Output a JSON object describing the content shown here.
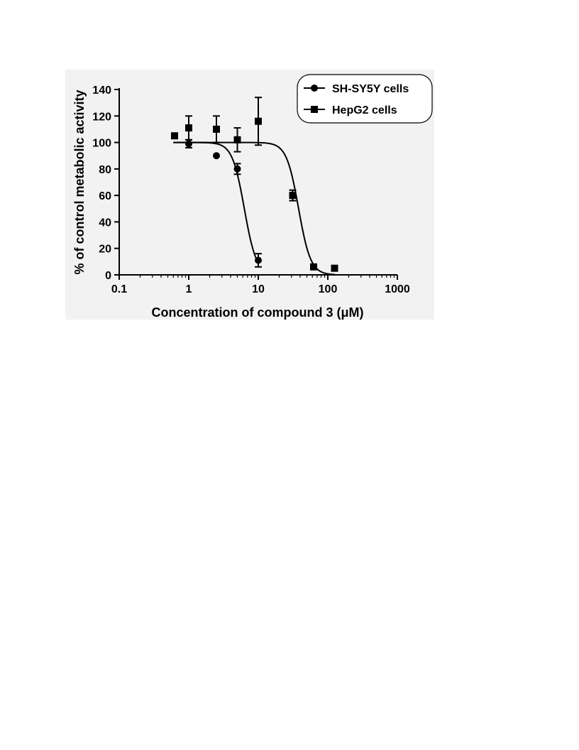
{
  "chart_data": {
    "type": "scatter",
    "title": "",
    "xlabel": "Concentration of compound 3 (μM)",
    "ylabel": "% of control metabolic activity",
    "x_scale": "log",
    "xlim": [
      0.1,
      1000
    ],
    "ylim": [
      0,
      140
    ],
    "x_ticks": [
      0.1,
      1,
      10,
      100,
      1000
    ],
    "x_tick_labels": [
      "0.1",
      "1",
      "10",
      "100",
      "1000"
    ],
    "y_ticks": [
      0,
      20,
      40,
      60,
      80,
      100,
      120,
      140
    ],
    "y_tick_labels": [
      "0",
      "20",
      "40",
      "60",
      "80",
      "100",
      "120",
      "140"
    ],
    "grid": false,
    "legend_position": "top-right",
    "series": [
      {
        "name": "SH-SY5Y cells",
        "marker": "circle",
        "points": [
          {
            "x": 1,
            "y": 99,
            "err": 3
          },
          {
            "x": 2.5,
            "y": 90,
            "err": 0
          },
          {
            "x": 5,
            "y": 80,
            "err": 4
          },
          {
            "x": 10,
            "y": 11,
            "err": 5
          }
        ],
        "fit": {
          "top": 100,
          "bottom": 0,
          "ec50": 6.3,
          "hill": 5
        }
      },
      {
        "name": "HepG2 cells",
        "marker": "square",
        "points": [
          {
            "x": 0.625,
            "y": 105,
            "err": 0
          },
          {
            "x": 1,
            "y": 111,
            "err": 9
          },
          {
            "x": 2.5,
            "y": 110,
            "err": 10
          },
          {
            "x": 5,
            "y": 102,
            "err": 9
          },
          {
            "x": 10,
            "y": 116,
            "err": 18
          },
          {
            "x": 31.25,
            "y": 60,
            "err": 4
          },
          {
            "x": 62.5,
            "y": 6,
            "err": 0
          },
          {
            "x": 125,
            "y": 5,
            "err": 0
          }
        ],
        "fit": {
          "top": 100,
          "bottom": 0,
          "ec50": 38,
          "hill": 5
        }
      }
    ]
  }
}
